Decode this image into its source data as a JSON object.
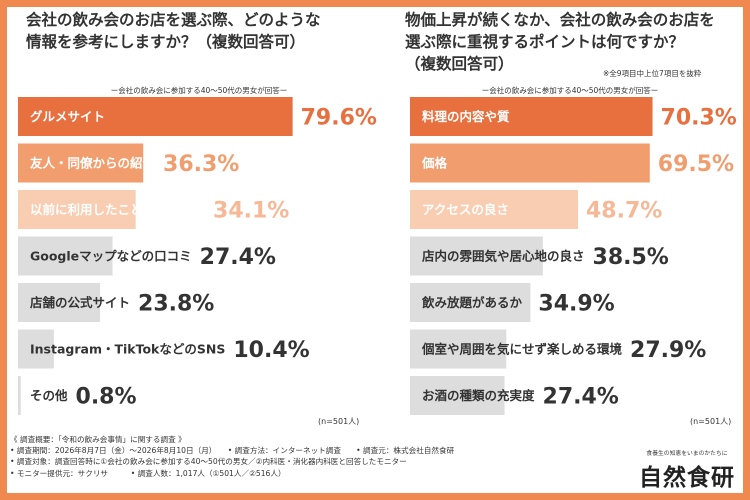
{
  "colors": {
    "frame": "#f0894f",
    "bar_primary": "#e8703f",
    "bar_secondary": "#f19d6d",
    "bar_tertiary": "#f9cdb1",
    "bar_gray": "#dddddd",
    "text_dark": "#333333",
    "text_white": "#ffffff",
    "value_primary": "#e8703f",
    "value_secondary": "#f19d6d",
    "value_tertiary": "#f6b895",
    "value_gray": "#333333"
  },
  "left": {
    "title_lines": [
      "会社の飲み会のお店を選ぶ際、どのような",
      "情報を参考にしますか？（複数回答可）"
    ],
    "subtitle": "ー会社の飲み会に参加する40〜50代の男女が回答ー",
    "note": "",
    "count": "(n=501人)"
  },
  "right": {
    "title_lines": [
      "物価上昇が続くなか、会社の飲み会のお店を",
      "選ぶ際に重視するポイントは何ですか？",
      "（複数回答可）"
    ],
    "subtitle": "ー会社の飲み会に参加する40〜50代の男女が回答ー",
    "note": "※全9項目中上位7項目を抜粋",
    "count": "(n=501人)"
  },
  "chart_data": [
    {
      "type": "bar",
      "orientation": "horizontal",
      "title": "会社の飲み会のお店を選ぶ際、どのような情報を参考にしますか？（複数回答可）",
      "subtitle": "ー会社の飲み会に参加する40〜50代の男女が回答ー",
      "categories": [
        "グルメサイト",
        "友人・同僚からの紹介",
        "以前に利用したことがある店舗",
        "Googleマップなどの口コミ",
        "店舗の公式サイト",
        "Instagram・TikTokなどのSNS",
        "その他"
      ],
      "values": [
        79.6,
        36.3,
        34.1,
        27.4,
        23.8,
        10.4,
        0.8
      ],
      "value_labels": [
        "79.6%",
        "36.3%",
        "34.1%",
        "27.4%",
        "23.8%",
        "10.4%",
        "0.8%"
      ],
      "unit": "%",
      "xlim": [
        0,
        100
      ],
      "sample": "(n=501人)"
    },
    {
      "type": "bar",
      "orientation": "horizontal",
      "title": "物価上昇が続くなか、会社の飲み会のお店を選ぶ際に重視するポイントは何ですか？（複数回答可）",
      "subtitle": "ー会社の飲み会に参加する40〜50代の男女が回答ー",
      "note": "※全9項目中上位7項目を抜粋",
      "categories": [
        "料理の内容や質",
        "価格",
        "アクセスの良さ",
        "店内の雰囲気や居心地の良さ",
        "飲み放題があるか",
        "個室や周囲を気にせず楽しめる環境",
        "お酒の種類の充実度"
      ],
      "values": [
        70.3,
        69.5,
        48.7,
        38.5,
        34.9,
        27.9,
        27.4
      ],
      "value_labels": [
        "70.3%",
        "69.5%",
        "48.7%",
        "38.5%",
        "34.9%",
        "27.9%",
        "27.4%"
      ],
      "unit": "%",
      "xlim": [
        0,
        100
      ],
      "sample": "(n=501人)"
    }
  ],
  "footer": {
    "lines": [
      "《 調査概要：「令和の飲み会事情」に関する調査 》",
      "• 調査期間：2026年8月7日（金）〜2026年8月10日（月）　　• 調査方法：インターネット調査　　• 調査元：株式会社自然食研",
      "• 調査対象：調査回答時に①会社の飲み会に参加する40〜50代の男女／②内科医・消化器内科医と回答したモニター",
      "• モニター提供元：サクリサ　　　• 調査人数：1,017人（①501人／②516人）"
    ]
  },
  "brand": {
    "tagline": "食養生の知恵をいまのかたちに",
    "logo": "自然食研"
  }
}
